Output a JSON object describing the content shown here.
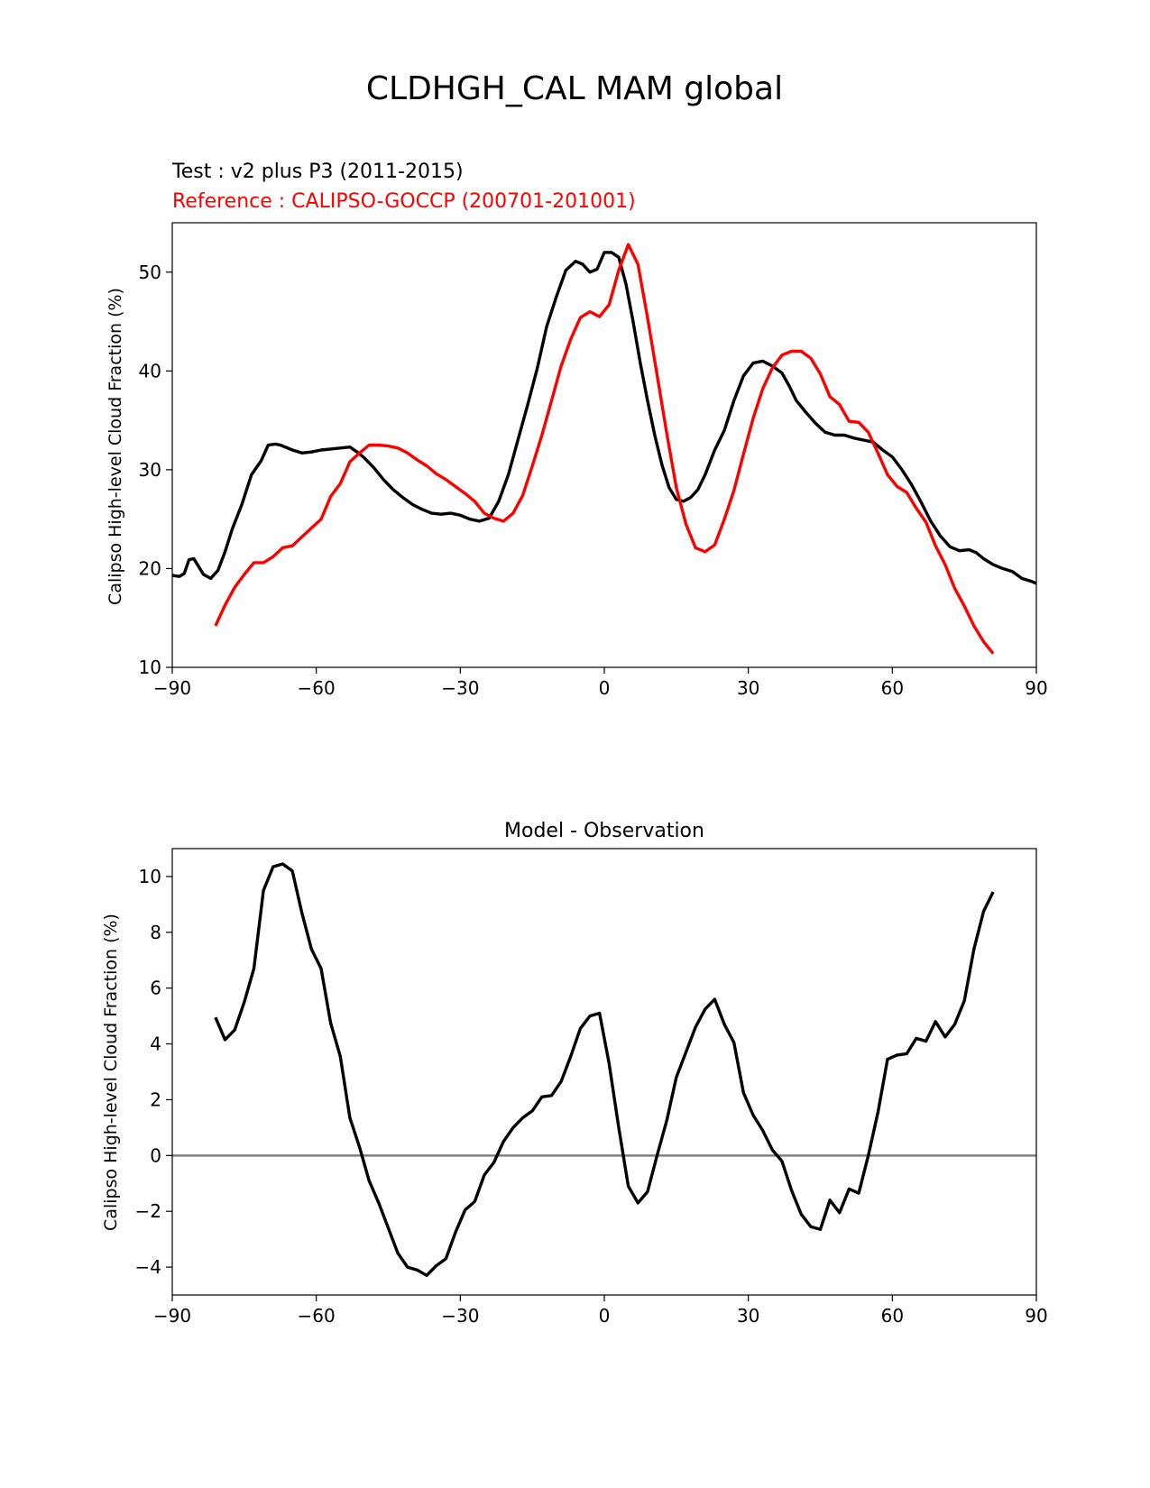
{
  "figure_title": "CLDHGH_CAL MAM global",
  "colors": {
    "test": "#000000",
    "reference": "#ff0000",
    "zero_line": "#808080"
  },
  "chart_data": [
    {
      "type": "line",
      "title": "",
      "legend": [
        {
          "label": "Test : v2 plus P3 (2011-2015)",
          "color": "#000000"
        },
        {
          "label": "Reference : CALIPSO-GOCCP (200701-201001)",
          "color": "#ff0000"
        }
      ],
      "xlabel": "",
      "ylabel": "Calipso High-level Cloud Fraction (%)",
      "xlim": [
        -90,
        90
      ],
      "ylim": [
        10,
        55
      ],
      "xticks": [
        -90,
        -60,
        -30,
        0,
        30,
        60,
        90
      ],
      "xtick_labels": [
        "−90",
        "−60",
        "−30",
        "0",
        "30",
        "60",
        "90"
      ],
      "yticks": [
        10,
        20,
        30,
        40,
        50
      ],
      "ytick_labels": [
        "10",
        "20",
        "30",
        "40",
        "50"
      ],
      "series": [
        {
          "name": "Test : v2 plus P3 (2011-2015)",
          "color": "#000000",
          "x": [
            -90,
            -88.5,
            -87.5,
            -86.5,
            -85.5,
            -84.5,
            -83.5,
            -82,
            -80.5,
            -79,
            -77.5,
            -75.5,
            -73.5,
            -71.5,
            -70,
            -68.5,
            -67.5,
            -66.5,
            -65,
            -63,
            -61,
            -59,
            -57,
            -55,
            -53,
            -51.5,
            -50,
            -48,
            -46,
            -44,
            -42,
            -40,
            -38,
            -36,
            -34,
            -32,
            -30,
            -28,
            -26,
            -24,
            -22,
            -20,
            -18,
            -16,
            -14,
            -12,
            -10,
            -8,
            -6,
            -4.5,
            -3,
            -1.5,
            0,
            1.5,
            3,
            4.5,
            6,
            7.5,
            9,
            10.5,
            12,
            13.5,
            15,
            16.5,
            18,
            19.5,
            21,
            23,
            25,
            27,
            29,
            31,
            33,
            35,
            37,
            38.5,
            40,
            42,
            44,
            46,
            48,
            50,
            52,
            54,
            56,
            58,
            60,
            62,
            64,
            66,
            68,
            70,
            72,
            74,
            76,
            77.5,
            79,
            81,
            83,
            85,
            87,
            89,
            90
          ],
          "values": [
            19.3,
            19.2,
            19.5,
            20.9,
            21.0,
            20.2,
            19.4,
            19.0,
            19.8,
            21.7,
            24.0,
            26.5,
            29.5,
            30.9,
            32.5,
            32.6,
            32.5,
            32.3,
            32.0,
            31.7,
            31.8,
            32.0,
            32.1,
            32.2,
            32.3,
            31.8,
            31.2,
            30.2,
            29.0,
            28.0,
            27.2,
            26.5,
            26.0,
            25.6,
            25.5,
            25.6,
            25.4,
            25.0,
            24.8,
            25.1,
            26.8,
            29.5,
            33.0,
            36.5,
            40.2,
            44.5,
            47.5,
            50.2,
            51.1,
            50.8,
            50.0,
            50.3,
            52.0,
            52.0,
            51.5,
            48.8,
            45.0,
            40.8,
            37.0,
            33.5,
            30.5,
            28.2,
            27.0,
            26.8,
            27.2,
            28.0,
            29.5,
            32.0,
            34.0,
            37.0,
            39.5,
            40.8,
            41.0,
            40.5,
            39.8,
            38.5,
            37.0,
            35.8,
            34.7,
            33.8,
            33.5,
            33.5,
            33.2,
            33.0,
            32.8,
            32.0,
            31.3,
            30.0,
            28.5,
            26.7,
            24.8,
            23.3,
            22.2,
            21.8,
            21.9,
            21.6,
            21.0,
            20.4,
            20.0,
            19.7,
            19.0,
            18.7,
            18.5
          ]
        },
        {
          "name": "Reference : CALIPSO-GOCCP (200701-201001)",
          "color": "#ff0000",
          "x": [
            -81,
            -79,
            -77,
            -75,
            -73,
            -71,
            -69,
            -67,
            -65,
            -63,
            -61,
            -59,
            -57,
            -55,
            -53,
            -51,
            -49,
            -47,
            -45,
            -43,
            -41,
            -39,
            -37,
            -35,
            -33,
            -31,
            -29,
            -27,
            -25,
            -23,
            -21,
            -19,
            -17,
            -15,
            -13,
            -11,
            -9,
            -7,
            -5,
            -3,
            -1,
            1,
            3,
            5,
            7,
            9,
            11,
            13,
            15,
            17,
            19,
            21,
            23,
            25,
            27,
            29,
            31,
            33,
            35,
            37,
            39,
            41,
            43,
            45,
            47,
            49,
            51,
            53,
            55,
            57,
            59,
            61,
            63,
            65,
            67,
            69,
            71,
            73,
            75,
            77,
            79,
            81
          ],
          "values": [
            14.2,
            16.3,
            18.1,
            19.4,
            20.6,
            20.6,
            21.2,
            22.1,
            22.3,
            23.2,
            24.1,
            25.0,
            27.3,
            28.6,
            30.8,
            31.7,
            32.5,
            32.5,
            32.4,
            32.2,
            31.7,
            31.0,
            30.4,
            29.6,
            29.0,
            28.3,
            27.6,
            26.8,
            25.6,
            25.1,
            24.8,
            25.6,
            27.4,
            30.4,
            33.5,
            37.0,
            40.5,
            43.2,
            45.4,
            46.0,
            45.5,
            46.7,
            50.2,
            52.8,
            50.8,
            45.4,
            39.6,
            33.7,
            28.2,
            24.5,
            22.1,
            21.7,
            22.4,
            25.0,
            27.9,
            31.6,
            35.2,
            38.2,
            40.3,
            41.6,
            42.0,
            42.0,
            41.3,
            39.7,
            37.4,
            36.6,
            34.9,
            34.8,
            33.8,
            31.7,
            29.5,
            28.3,
            27.7,
            26.1,
            24.7,
            22.3,
            20.4,
            18.0,
            16.2,
            14.2,
            12.6,
            11.4
          ]
        }
      ]
    },
    {
      "type": "line",
      "title": "Model - Observation",
      "xlabel": "",
      "ylabel": "Calipso High-level Cloud Fraction (%)",
      "xlim": [
        -90,
        90
      ],
      "ylim": [
        -5,
        11
      ],
      "xticks": [
        -90,
        -60,
        -30,
        0,
        30,
        60,
        90
      ],
      "xtick_labels": [
        "−90",
        "−60",
        "−30",
        "0",
        "30",
        "60",
        "90"
      ],
      "yticks": [
        -4,
        -2,
        0,
        2,
        4,
        6,
        8,
        10
      ],
      "ytick_labels": [
        "−4",
        "−2",
        "0",
        "2",
        "4",
        "6",
        "8",
        "10"
      ],
      "reference_line": {
        "y": 0,
        "color": "#808080"
      },
      "series": [
        {
          "name": "Model - Observation",
          "color": "#000000",
          "x": [
            -81,
            -79,
            -77,
            -75,
            -73,
            -71,
            -69,
            -67,
            -65,
            -63,
            -61,
            -59,
            -57,
            -55,
            -53,
            -51,
            -49,
            -47,
            -45,
            -43,
            -41,
            -39,
            -37,
            -35,
            -33,
            -31,
            -29,
            -27,
            -25,
            -23,
            -21,
            -19,
            -17,
            -15,
            -13,
            -11,
            -9,
            -7,
            -5,
            -3,
            -1,
            1,
            3,
            5,
            7,
            9,
            11,
            13,
            15,
            17,
            19,
            21,
            23,
            25,
            27,
            29,
            31,
            33,
            35,
            37,
            39,
            41,
            43,
            45,
            47,
            49,
            51,
            53,
            55,
            57,
            59,
            61,
            63,
            65,
            67,
            69,
            71,
            73,
            75,
            77,
            79,
            81
          ],
          "values": [
            4.95,
            4.15,
            4.5,
            5.5,
            6.7,
            9.5,
            10.35,
            10.45,
            10.2,
            8.7,
            7.4,
            6.7,
            4.75,
            3.55,
            1.35,
            0.3,
            -0.9,
            -1.7,
            -2.6,
            -3.5,
            -4.0,
            -4.1,
            -4.3,
            -3.95,
            -3.7,
            -2.75,
            -1.95,
            -1.65,
            -0.7,
            -0.25,
            0.5,
            1.0,
            1.35,
            1.6,
            2.1,
            2.15,
            2.65,
            3.55,
            4.55,
            5.0,
            5.1,
            3.3,
            1.0,
            -1.1,
            -1.7,
            -1.3,
            0.0,
            1.25,
            2.8,
            3.7,
            4.6,
            5.25,
            5.6,
            4.7,
            4.05,
            2.25,
            1.45,
            0.9,
            0.2,
            -0.2,
            -1.25,
            -2.1,
            -2.55,
            -2.65,
            -1.6,
            -2.05,
            -1.2,
            -1.35,
            0.0,
            1.55,
            3.45,
            3.6,
            3.65,
            4.2,
            4.1,
            4.8,
            4.25,
            4.7,
            5.55,
            7.4,
            8.75,
            9.45
          ]
        }
      ]
    }
  ]
}
